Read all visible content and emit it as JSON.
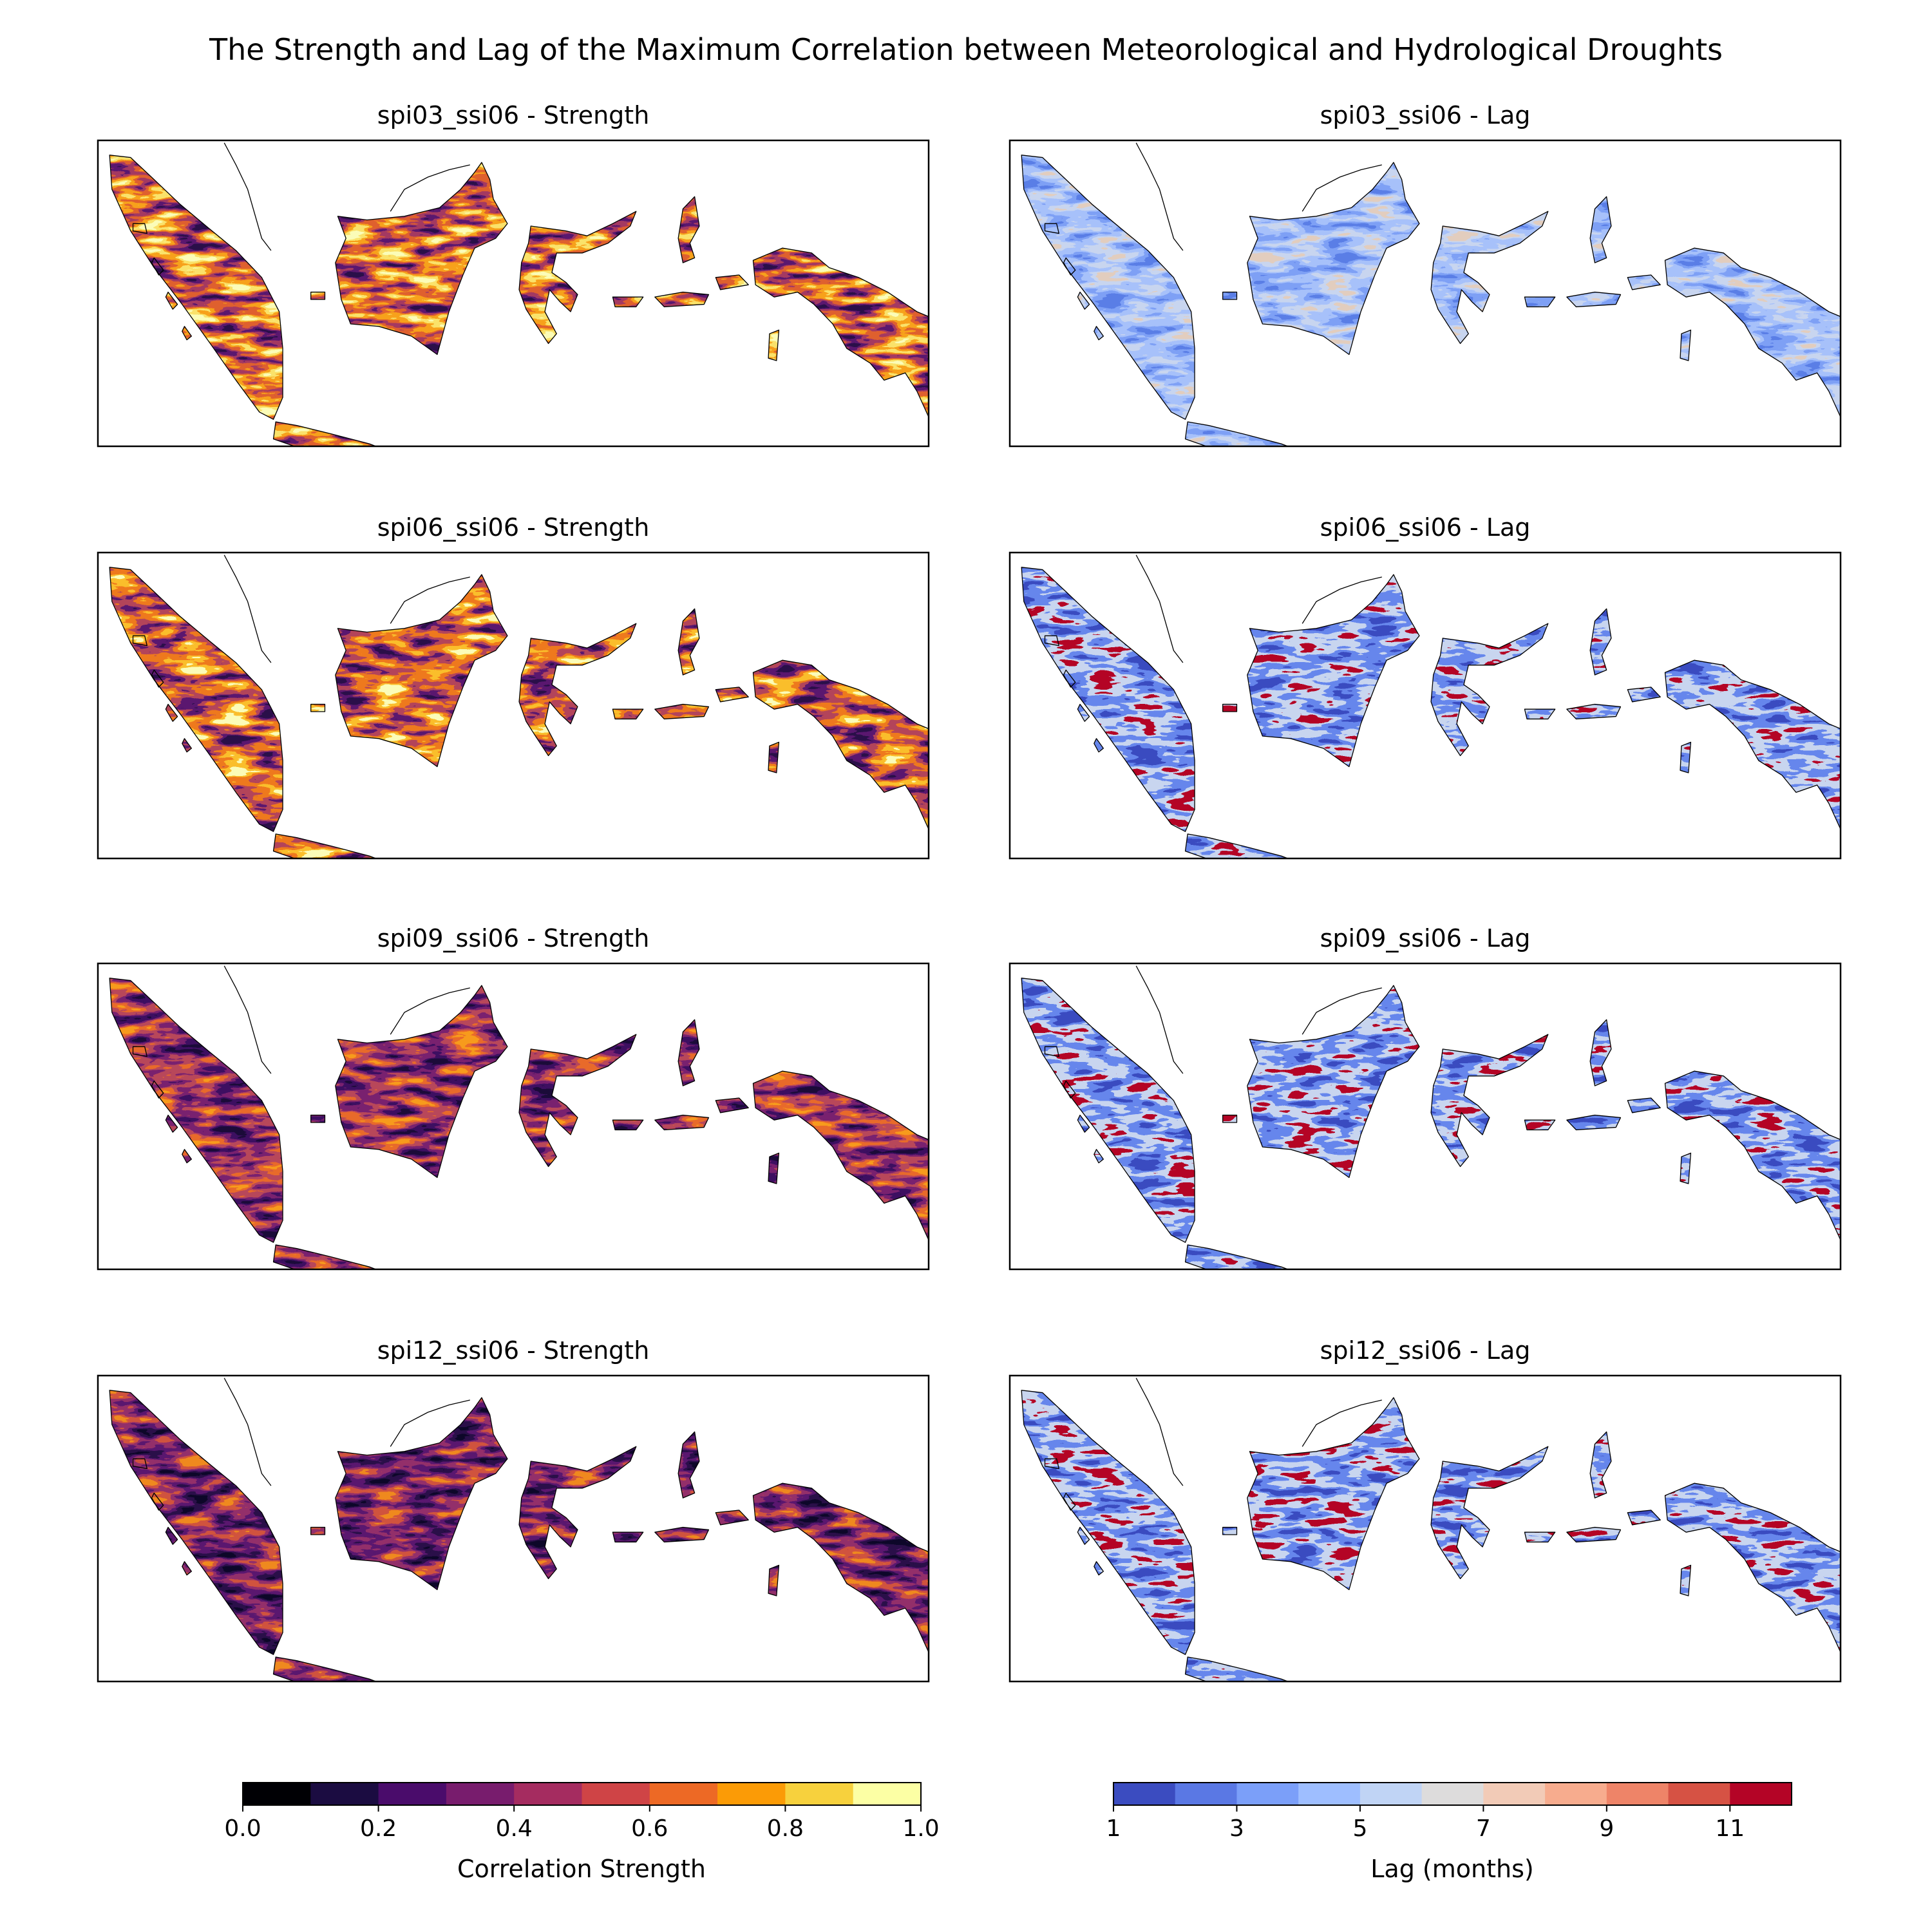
{
  "title": "The Strength and Lag of the Maximum Correlation between Meteorological and Hydrological Droughts",
  "panels": [
    {
      "title": "spi03_ssi06 - Strength",
      "kind": "strength",
      "palette": [
        "#2a0f4a",
        "#5a1870",
        "#a53a62",
        "#e0612f",
        "#f7a21b",
        "#fbe36a",
        "#fcfdb9"
      ],
      "levels": [
        0.3,
        0.35,
        0.45,
        0.6,
        0.75,
        0.85,
        0.95
      ]
    },
    {
      "title": "spi03_ssi06 - Lag",
      "kind": "lag",
      "palette": [
        "#5a7fe6",
        "#7fa1f5",
        "#a7c1fb",
        "#c9d6f0",
        "#e3cdbf"
      ],
      "levels": [
        2,
        3,
        4,
        5,
        7
      ]
    },
    {
      "title": "spi06_ssi06 - Strength",
      "kind": "strength",
      "palette": [
        "#2a0f4a",
        "#5a1870",
        "#b3445a",
        "#ef7a1d",
        "#fbbf2b",
        "#fcfdb9"
      ],
      "levels": [
        0.25,
        0.35,
        0.55,
        0.7,
        0.85,
        0.95
      ]
    },
    {
      "title": "spi06_ssi06 - Lag",
      "kind": "lag",
      "palette": [
        "#3b4cc0",
        "#6687ed",
        "#c9d6f0",
        "#b40426"
      ],
      "levels": [
        1,
        2,
        6,
        12
      ]
    },
    {
      "title": "spi09_ssi06 - Strength",
      "kind": "strength",
      "palette": [
        "#1b0c3a",
        "#3e0f62",
        "#7a2270",
        "#b8485a",
        "#e86a2a",
        "#f79b1c"
      ],
      "levels": [
        0.15,
        0.25,
        0.35,
        0.5,
        0.65,
        0.75
      ]
    },
    {
      "title": "spi09_ssi06 - Lag",
      "kind": "lag",
      "palette": [
        "#3b4cc0",
        "#6687ed",
        "#c9d6f0",
        "#b40426"
      ],
      "levels": [
        1,
        2,
        6,
        12
      ]
    },
    {
      "title": "spi12_ssi06 - Strength",
      "kind": "strength",
      "palette": [
        "#0d0829",
        "#2a0f4a",
        "#5a1870",
        "#94306a",
        "#d0543f",
        "#f08a1e"
      ],
      "levels": [
        0.05,
        0.2,
        0.3,
        0.4,
        0.55,
        0.7
      ]
    },
    {
      "title": "spi12_ssi06 - Lag",
      "kind": "lag",
      "palette": [
        "#3b4cc0",
        "#6687ed",
        "#c9d6f0",
        "#b40426"
      ],
      "levels": [
        1,
        2,
        6,
        12
      ]
    }
  ],
  "chart_data": [
    {
      "type": "heatmap",
      "variable": "Correlation Strength",
      "colorbar_label": "Correlation Strength",
      "range": [
        0.0,
        1.0
      ],
      "tick_labels": [
        "0.0",
        "0.2",
        "0.4",
        "0.6",
        "0.8",
        "1.0"
      ],
      "bins": [
        {
          "from": 0.0,
          "to": 0.1,
          "color": "#000004"
        },
        {
          "from": 0.1,
          "to": 0.2,
          "color": "#1b0c41"
        },
        {
          "from": 0.2,
          "to": 0.3,
          "color": "#4a0c6b"
        },
        {
          "from": 0.3,
          "to": 0.4,
          "color": "#781c6d"
        },
        {
          "from": 0.4,
          "to": 0.5,
          "color": "#a52c60"
        },
        {
          "from": 0.5,
          "to": 0.6,
          "color": "#cf4446"
        },
        {
          "from": 0.6,
          "to": 0.7,
          "color": "#ed6925"
        },
        {
          "from": 0.7,
          "to": 0.8,
          "color": "#fb9b06"
        },
        {
          "from": 0.8,
          "to": 0.9,
          "color": "#f7d13d"
        },
        {
          "from": 0.9,
          "to": 1.0,
          "color": "#fcffa4"
        }
      ]
    },
    {
      "type": "heatmap",
      "variable": "Lag (months)",
      "colorbar_label": "Lag (months)",
      "range": [
        1,
        12
      ],
      "tick_labels": [
        "1",
        "3",
        "5",
        "7",
        "9",
        "11"
      ],
      "bins": [
        {
          "from": 1,
          "to": 2,
          "color": "#3b4cc0"
        },
        {
          "from": 2,
          "to": 3,
          "color": "#5a78e4"
        },
        {
          "from": 3,
          "to": 4,
          "color": "#7b9ff9"
        },
        {
          "from": 4,
          "to": 5,
          "color": "#9ebeff"
        },
        {
          "from": 5,
          "to": 6,
          "color": "#c0d4f5"
        },
        {
          "from": 6,
          "to": 7,
          "color": "#dddcdc"
        },
        {
          "from": 7,
          "to": 8,
          "color": "#f2cbb7"
        },
        {
          "from": 8,
          "to": 9,
          "color": "#f7ac8e"
        },
        {
          "from": 9,
          "to": 10,
          "color": "#ee8468"
        },
        {
          "from": 10,
          "to": 11,
          "color": "#d65244"
        },
        {
          "from": 11,
          "to": 12,
          "color": "#b40426"
        }
      ]
    }
  ]
}
